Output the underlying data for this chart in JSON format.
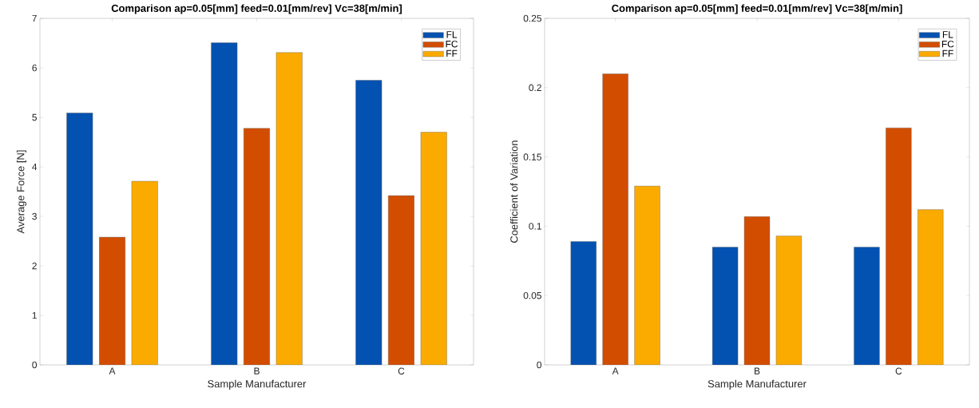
{
  "chart_data": [
    {
      "type": "bar",
      "title": "Comparison ap=0.05[mm] feed=0.01[mm/rev] Vc=38[m/min]",
      "xlabel": "Sample Manufacturer",
      "ylabel": "Average Force [N]",
      "categories": [
        "A",
        "B",
        "C"
      ],
      "series": [
        {
          "name": "FL",
          "color": "#0351b0",
          "values": [
            5.09,
            6.51,
            5.75
          ]
        },
        {
          "name": "FC",
          "color": "#d24d00",
          "values": [
            2.58,
            4.78,
            3.42
          ]
        },
        {
          "name": "FF",
          "color": "#fbab00",
          "values": [
            3.71,
            6.31,
            4.7
          ]
        }
      ],
      "ylim": [
        0,
        7
      ],
      "yticks": [
        0,
        1,
        2,
        3,
        4,
        5,
        6,
        7
      ],
      "legend": "top right"
    },
    {
      "type": "bar",
      "title": "Comparison ap=0.05[mm] feed=0.01[mm/rev] Vc=38[m/min]",
      "xlabel": "Sample Manufacturer",
      "ylabel": "Coefficient of Variation",
      "categories": [
        "A",
        "B",
        "C"
      ],
      "series": [
        {
          "name": "FL",
          "color": "#0351b0",
          "values": [
            0.089,
            0.085,
            0.085
          ]
        },
        {
          "name": "FC",
          "color": "#d24d00",
          "values": [
            0.21,
            0.107,
            0.171
          ]
        },
        {
          "name": "FF",
          "color": "#fbab00",
          "values": [
            0.129,
            0.093,
            0.112
          ]
        }
      ],
      "ylim": [
        0,
        0.25
      ],
      "yticks": [
        0,
        0.05,
        0.1,
        0.15,
        0.2,
        0.25
      ],
      "legend": "top right"
    }
  ]
}
